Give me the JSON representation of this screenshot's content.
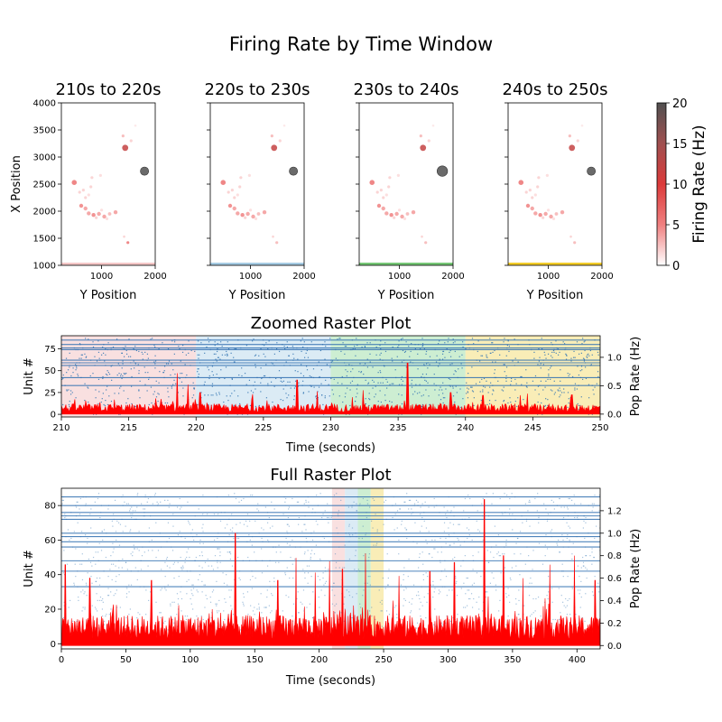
{
  "figure": {
    "suptitle": "Firing Rate by Time Window",
    "colorbar": {
      "label": "Firing Rate (Hz)",
      "ticks": [
        "0",
        "5",
        "10",
        "15",
        "20"
      ],
      "range": [
        0,
        20
      ],
      "colors": [
        "#ffffff",
        "#f08080",
        "#dc3a3a",
        "#a05050",
        "#505050"
      ]
    }
  },
  "chart_data": [
    {
      "type": "scatter",
      "title": "210s to 220s",
      "xlabel": "Y Position",
      "ylabel": "X Position",
      "xlim": [
        250,
        2000
      ],
      "ylim": [
        1000,
        4000
      ],
      "xticks": [
        "1000",
        "2000"
      ],
      "yticks": [
        "1000",
        "1500",
        "2000",
        "2500",
        "3000",
        "3500",
        "4000"
      ],
      "window_color": "#f4c7c7",
      "points": [
        {
          "x": 1800,
          "y": 2740,
          "rate": 20,
          "size": 7
        },
        {
          "x": 1440,
          "y": 3170,
          "rate": 12,
          "size": 5
        },
        {
          "x": 490,
          "y": 2530,
          "rate": 6,
          "size": 4
        },
        {
          "x": 1400,
          "y": 3390,
          "rate": 3,
          "size": 2
        },
        {
          "x": 1550,
          "y": 3300,
          "rate": 2,
          "size": 2
        },
        {
          "x": 1630,
          "y": 3580,
          "rate": 1,
          "size": 1.5
        },
        {
          "x": 1490,
          "y": 1420,
          "rate": 6,
          "size": 2
        },
        {
          "x": 1420,
          "y": 1530,
          "rate": 2,
          "size": 1.5
        },
        {
          "x": 620,
          "y": 2100,
          "rate": 5,
          "size": 3
        },
        {
          "x": 700,
          "y": 2050,
          "rate": 4,
          "size": 3
        },
        {
          "x": 760,
          "y": 1960,
          "rate": 4,
          "size": 3
        },
        {
          "x": 850,
          "y": 1930,
          "rate": 5,
          "size": 3
        },
        {
          "x": 950,
          "y": 1950,
          "rate": 4,
          "size": 3
        },
        {
          "x": 1050,
          "y": 1900,
          "rate": 4,
          "size": 3
        },
        {
          "x": 1150,
          "y": 1950,
          "rate": 3,
          "size": 2.5
        },
        {
          "x": 1260,
          "y": 1980,
          "rate": 4,
          "size": 3
        },
        {
          "x": 900,
          "y": 1880,
          "rate": 2,
          "size": 2
        },
        {
          "x": 660,
          "y": 2390,
          "rate": 2,
          "size": 2
        },
        {
          "x": 700,
          "y": 2250,
          "rate": 2,
          "size": 2
        },
        {
          "x": 800,
          "y": 2450,
          "rate": 2,
          "size": 2
        },
        {
          "x": 820,
          "y": 2620,
          "rate": 2,
          "size": 2
        },
        {
          "x": 980,
          "y": 2660,
          "rate": 1.5,
          "size": 2
        },
        {
          "x": 590,
          "y": 2350,
          "rate": 2,
          "size": 2
        },
        {
          "x": 760,
          "y": 2300,
          "rate": 1.5,
          "size": 2
        },
        {
          "x": 1000,
          "y": 2020,
          "rate": 1.5,
          "size": 2
        },
        {
          "x": 1100,
          "y": 1860,
          "rate": 1.5,
          "size": 2
        }
      ]
    },
    {
      "type": "scatter",
      "title": "220s to 230s",
      "xlabel": "Y Position",
      "xlim": [
        250,
        2000
      ],
      "ylim": [
        1000,
        4000
      ],
      "xticks": [
        "1000",
        "2000"
      ],
      "window_color": "#a6cbe3",
      "points": [
        {
          "x": 1800,
          "y": 2740,
          "rate": 20,
          "size": 7
        },
        {
          "x": 1440,
          "y": 3170,
          "rate": 12,
          "size": 5
        },
        {
          "x": 490,
          "y": 2530,
          "rate": 6,
          "size": 4
        },
        {
          "x": 1400,
          "y": 3390,
          "rate": 3,
          "size": 2
        },
        {
          "x": 1550,
          "y": 3300,
          "rate": 2,
          "size": 2
        },
        {
          "x": 1630,
          "y": 3580,
          "rate": 1,
          "size": 1.5
        },
        {
          "x": 1490,
          "y": 1420,
          "rate": 3,
          "size": 2
        },
        {
          "x": 1420,
          "y": 1530,
          "rate": 2,
          "size": 1.5
        },
        {
          "x": 620,
          "y": 2100,
          "rate": 5,
          "size": 3
        },
        {
          "x": 700,
          "y": 2050,
          "rate": 4,
          "size": 3
        },
        {
          "x": 760,
          "y": 1960,
          "rate": 4,
          "size": 3
        },
        {
          "x": 850,
          "y": 1930,
          "rate": 5,
          "size": 3
        },
        {
          "x": 950,
          "y": 1950,
          "rate": 4,
          "size": 3
        },
        {
          "x": 1050,
          "y": 1900,
          "rate": 4,
          "size": 3
        },
        {
          "x": 1150,
          "y": 1950,
          "rate": 3,
          "size": 2.5
        },
        {
          "x": 1260,
          "y": 1980,
          "rate": 4,
          "size": 3
        },
        {
          "x": 900,
          "y": 1880,
          "rate": 2,
          "size": 2
        },
        {
          "x": 660,
          "y": 2390,
          "rate": 2,
          "size": 2
        },
        {
          "x": 700,
          "y": 2250,
          "rate": 2,
          "size": 2
        },
        {
          "x": 800,
          "y": 2450,
          "rate": 2,
          "size": 2
        },
        {
          "x": 820,
          "y": 2620,
          "rate": 2,
          "size": 2
        },
        {
          "x": 980,
          "y": 2660,
          "rate": 1.5,
          "size": 2
        },
        {
          "x": 590,
          "y": 2350,
          "rate": 2,
          "size": 2
        },
        {
          "x": 760,
          "y": 2300,
          "rate": 1.5,
          "size": 2
        },
        {
          "x": 1000,
          "y": 2020,
          "rate": 1.5,
          "size": 2
        },
        {
          "x": 1100,
          "y": 1860,
          "rate": 1.5,
          "size": 2
        }
      ]
    },
    {
      "type": "scatter",
      "title": "230s to 240s",
      "xlabel": "Y Position",
      "xlim": [
        250,
        2000
      ],
      "ylim": [
        1000,
        4000
      ],
      "xticks": [
        "1000",
        "2000"
      ],
      "window_color": "#76c776",
      "points": [
        {
          "x": 1800,
          "y": 2740,
          "rate": 20,
          "size": 9
        },
        {
          "x": 1440,
          "y": 3170,
          "rate": 12,
          "size": 5
        },
        {
          "x": 490,
          "y": 2530,
          "rate": 6,
          "size": 4
        },
        {
          "x": 1400,
          "y": 3390,
          "rate": 3,
          "size": 2
        },
        {
          "x": 1550,
          "y": 3300,
          "rate": 2,
          "size": 2
        },
        {
          "x": 1630,
          "y": 3580,
          "rate": 1,
          "size": 1.5
        },
        {
          "x": 1490,
          "y": 1420,
          "rate": 3,
          "size": 2
        },
        {
          "x": 1420,
          "y": 1530,
          "rate": 2,
          "size": 1.5
        },
        {
          "x": 620,
          "y": 2100,
          "rate": 5,
          "size": 3
        },
        {
          "x": 700,
          "y": 2050,
          "rate": 4,
          "size": 3
        },
        {
          "x": 760,
          "y": 1960,
          "rate": 4,
          "size": 3
        },
        {
          "x": 850,
          "y": 1930,
          "rate": 5,
          "size": 3
        },
        {
          "x": 950,
          "y": 1950,
          "rate": 4,
          "size": 3
        },
        {
          "x": 1050,
          "y": 1900,
          "rate": 4,
          "size": 3
        },
        {
          "x": 1150,
          "y": 1950,
          "rate": 3,
          "size": 2.5
        },
        {
          "x": 1260,
          "y": 1980,
          "rate": 4,
          "size": 3
        },
        {
          "x": 900,
          "y": 1880,
          "rate": 2,
          "size": 2
        },
        {
          "x": 660,
          "y": 2390,
          "rate": 2,
          "size": 2
        },
        {
          "x": 700,
          "y": 2250,
          "rate": 2,
          "size": 2
        },
        {
          "x": 800,
          "y": 2450,
          "rate": 2,
          "size": 2
        },
        {
          "x": 820,
          "y": 2620,
          "rate": 2,
          "size": 2
        },
        {
          "x": 980,
          "y": 2660,
          "rate": 1.5,
          "size": 2
        },
        {
          "x": 590,
          "y": 2350,
          "rate": 2,
          "size": 2
        },
        {
          "x": 760,
          "y": 2300,
          "rate": 1.5,
          "size": 2
        },
        {
          "x": 1000,
          "y": 2020,
          "rate": 1.5,
          "size": 2
        },
        {
          "x": 1100,
          "y": 1860,
          "rate": 1.5,
          "size": 2
        }
      ]
    },
    {
      "type": "scatter",
      "title": "240s to 250s",
      "xlabel": "Y Position",
      "xlim": [
        250,
        2000
      ],
      "ylim": [
        1000,
        4000
      ],
      "xticks": [
        "1000",
        "2000"
      ],
      "window_color": "#f2cc2a",
      "points": [
        {
          "x": 1800,
          "y": 2740,
          "rate": 20,
          "size": 7
        },
        {
          "x": 1440,
          "y": 3170,
          "rate": 12,
          "size": 5
        },
        {
          "x": 490,
          "y": 2530,
          "rate": 6,
          "size": 4
        },
        {
          "x": 1400,
          "y": 3390,
          "rate": 3,
          "size": 2
        },
        {
          "x": 1550,
          "y": 3300,
          "rate": 2,
          "size": 2
        },
        {
          "x": 1630,
          "y": 3580,
          "rate": 1,
          "size": 1.5
        },
        {
          "x": 1490,
          "y": 1420,
          "rate": 3,
          "size": 2
        },
        {
          "x": 1420,
          "y": 1530,
          "rate": 2,
          "size": 1.5
        },
        {
          "x": 620,
          "y": 2100,
          "rate": 5,
          "size": 3
        },
        {
          "x": 700,
          "y": 2050,
          "rate": 4,
          "size": 3
        },
        {
          "x": 760,
          "y": 1960,
          "rate": 4,
          "size": 3
        },
        {
          "x": 850,
          "y": 1930,
          "rate": 5,
          "size": 3
        },
        {
          "x": 950,
          "y": 1950,
          "rate": 4,
          "size": 3
        },
        {
          "x": 1050,
          "y": 1900,
          "rate": 4,
          "size": 3
        },
        {
          "x": 1150,
          "y": 1950,
          "rate": 3,
          "size": 2.5
        },
        {
          "x": 1260,
          "y": 1980,
          "rate": 4,
          "size": 3
        },
        {
          "x": 900,
          "y": 1880,
          "rate": 2,
          "size": 2
        },
        {
          "x": 660,
          "y": 2390,
          "rate": 2,
          "size": 2
        },
        {
          "x": 700,
          "y": 2250,
          "rate": 2,
          "size": 2
        },
        {
          "x": 800,
          "y": 2450,
          "rate": 2,
          "size": 2
        },
        {
          "x": 820,
          "y": 2620,
          "rate": 2,
          "size": 2
        },
        {
          "x": 980,
          "y": 2660,
          "rate": 1.5,
          "size": 2
        },
        {
          "x": 590,
          "y": 2350,
          "rate": 2,
          "size": 2
        },
        {
          "x": 760,
          "y": 2300,
          "rate": 1.5,
          "size": 2
        },
        {
          "x": 1000,
          "y": 2020,
          "rate": 1.5,
          "size": 2
        },
        {
          "x": 1100,
          "y": 1860,
          "rate": 1.5,
          "size": 2
        }
      ]
    },
    {
      "type": "raster",
      "title": "Zoomed Raster Plot",
      "xlabel": "Time (seconds)",
      "ylabel": "Unit #",
      "ylabel_right": "Pop Rate (Hz)",
      "xlim": [
        210,
        250
      ],
      "ylim": [
        -3,
        90
      ],
      "ylim_right": [
        -0.05,
        1.38
      ],
      "xticks": [
        "210",
        "215",
        "220",
        "225",
        "230",
        "235",
        "240",
        "245",
        "250"
      ],
      "yticks": [
        "0",
        "25",
        "50",
        "75"
      ],
      "yticks_right": [
        "0.0",
        "0.5",
        "1.0"
      ],
      "bands": [
        {
          "start": 210,
          "end": 220,
          "color": "#f7d5d5"
        },
        {
          "start": 220,
          "end": 230,
          "color": "#cfe4f2"
        },
        {
          "start": 230,
          "end": 240,
          "color": "#bce8c3"
        },
        {
          "start": 240,
          "end": 250,
          "color": "#f7e79f"
        }
      ],
      "active_units": [
        33,
        42,
        56,
        59,
        62,
        74,
        76,
        80,
        85
      ],
      "unit_count": 88,
      "rate_baseline": 0.12,
      "rate_peaks": [
        {
          "t": 218.6,
          "r": 0.72
        },
        {
          "t": 219.4,
          "r": 0.52
        },
        {
          "t": 220.3,
          "r": 0.38
        },
        {
          "t": 224.2,
          "r": 0.35
        },
        {
          "t": 227.5,
          "r": 0.6
        },
        {
          "t": 229.0,
          "r": 0.4
        },
        {
          "t": 232.4,
          "r": 0.42
        },
        {
          "t": 235.7,
          "r": 0.9
        },
        {
          "t": 238.9,
          "r": 0.38
        },
        {
          "t": 241.3,
          "r": 0.33
        },
        {
          "t": 244.6,
          "r": 0.36
        },
        {
          "t": 247.9,
          "r": 0.34
        }
      ]
    },
    {
      "type": "raster",
      "title": "Full Raster Plot",
      "xlabel": "Time (seconds)",
      "ylabel": "Unit #",
      "ylabel_right": "Pop Rate (Hz)",
      "xlim": [
        0,
        418
      ],
      "ylim": [
        -3,
        90
      ],
      "ylim_right": [
        -0.03,
        1.4
      ],
      "xticks": [
        "0",
        "50",
        "100",
        "150",
        "200",
        "250",
        "300",
        "350",
        "400"
      ],
      "yticks": [
        "0",
        "20",
        "40",
        "60",
        "80"
      ],
      "yticks_right": [
        "0.0",
        "0.2",
        "0.4",
        "0.6",
        "0.8",
        "1.0",
        "1.2"
      ],
      "bands": [
        {
          "start": 210,
          "end": 220,
          "color": "#f7d5d5"
        },
        {
          "start": 220,
          "end": 230,
          "color": "#cfe4f2"
        },
        {
          "start": 230,
          "end": 240,
          "color": "#bce8c3"
        },
        {
          "start": 240,
          "end": 250,
          "color": "#f7e79f"
        }
      ],
      "active_units": [
        33,
        42,
        48,
        56,
        59,
        62,
        64,
        72,
        74,
        76,
        80,
        85
      ],
      "unit_count": 88,
      "rate_baseline": 0.18,
      "rate_peaks": [
        {
          "t": 3,
          "r": 0.72
        },
        {
          "t": 22,
          "r": 0.6
        },
        {
          "t": 70,
          "r": 0.58
        },
        {
          "t": 135,
          "r": 1.0
        },
        {
          "t": 168,
          "r": 0.58
        },
        {
          "t": 182,
          "r": 0.78
        },
        {
          "t": 197,
          "r": 0.65
        },
        {
          "t": 208,
          "r": 0.75
        },
        {
          "t": 218,
          "r": 0.68
        },
        {
          "t": 236,
          "r": 0.82
        },
        {
          "t": 262,
          "r": 0.62
        },
        {
          "t": 286,
          "r": 0.66
        },
        {
          "t": 305,
          "r": 0.74
        },
        {
          "t": 328,
          "r": 1.3
        },
        {
          "t": 343,
          "r": 0.8
        },
        {
          "t": 358,
          "r": 0.6
        },
        {
          "t": 379,
          "r": 0.72
        },
        {
          "t": 398,
          "r": 0.8
        },
        {
          "t": 414,
          "r": 0.58
        }
      ]
    }
  ]
}
